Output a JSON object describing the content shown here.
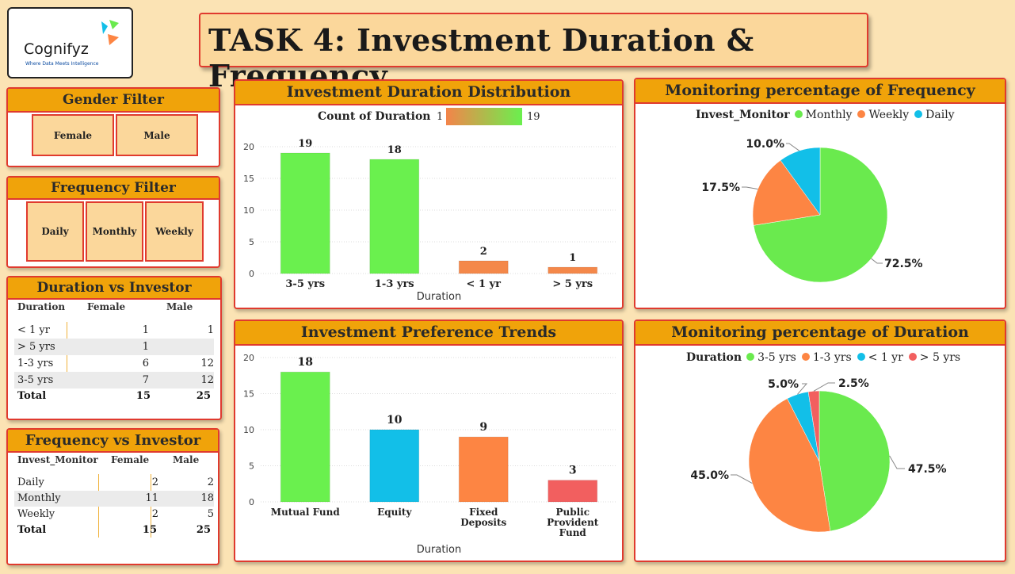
{
  "logo": {
    "name": "Cognifyz",
    "tagline": "Where Data Meets Intelligence"
  },
  "title": "TASK 4: Investment Duration & Frequency",
  "gender_filter": {
    "title": "Gender Filter",
    "options": [
      "Female",
      "Male"
    ]
  },
  "frequency_filter": {
    "title": "Frequency Filter",
    "options": [
      "Daily",
      "Monthly",
      "Weekly"
    ]
  },
  "duration_vs_investor": {
    "title": "Duration vs Investor",
    "columns": [
      "Duration",
      "Female",
      "Male"
    ],
    "rows": [
      {
        "label": "< 1 yr",
        "female": "1",
        "male": "1"
      },
      {
        "label": "> 5 yrs",
        "female": "1",
        "male": ""
      },
      {
        "label": "1-3 yrs",
        "female": "6",
        "male": "12"
      },
      {
        "label": "3-5 yrs",
        "female": "7",
        "male": "12"
      }
    ],
    "total": {
      "label": "Total",
      "female": "15",
      "male": "25"
    }
  },
  "frequency_vs_investor": {
    "title": "Frequency vs Investor",
    "columns": [
      "Invest_Monitor",
      "Female",
      "Male"
    ],
    "rows": [
      {
        "label": "Daily",
        "female": "2",
        "male": "2"
      },
      {
        "label": "Monthly",
        "female": "11",
        "male": "18"
      },
      {
        "label": "Weekly",
        "female": "2",
        "male": "5"
      }
    ],
    "total": {
      "label": "Total",
      "female": "15",
      "male": "25"
    }
  },
  "chart_data": [
    {
      "id": "duration_distribution",
      "type": "bar",
      "title": "Investment Duration Distribution",
      "legend_title": "Count of Duration",
      "gradient_min": "1",
      "gradient_max": "19",
      "gradient_colors": [
        "#f4844a",
        "#6af04e"
      ],
      "categories": [
        "3-5 yrs",
        "1-3 yrs",
        "< 1 yr",
        "> 5 yrs"
      ],
      "values": [
        19,
        18,
        2,
        1
      ],
      "bar_colors": [
        "#6af04e",
        "#6af04e",
        "#f4884a",
        "#f4884a"
      ],
      "xlabel": "Duration",
      "ylabel": "",
      "ylim": [
        0,
        20
      ],
      "yticks": [
        0,
        5,
        10,
        15,
        20
      ],
      "grid": true
    },
    {
      "id": "preference_trends",
      "type": "bar",
      "title": "Investment Preference Trends",
      "categories": [
        "Mutual Fund",
        "Equity",
        "Fixed Deposits",
        "Public Provident Fund"
      ],
      "category_lines": [
        [
          "Mutual Fund"
        ],
        [
          "Equity"
        ],
        [
          "Fixed",
          "Deposits"
        ],
        [
          "Public",
          "Provident",
          "Fund"
        ]
      ],
      "values": [
        18,
        10,
        9,
        3
      ],
      "bar_colors": [
        "#6af04e",
        "#12bfe8",
        "#fd8543",
        "#f25f5f"
      ],
      "xlabel": "Duration",
      "ylabel": "",
      "ylim": [
        0,
        20
      ],
      "yticks": [
        0,
        5,
        10,
        15,
        20
      ],
      "grid": true
    },
    {
      "id": "frequency_pie",
      "type": "pie",
      "title": "Monitoring percentage of Frequency",
      "legend_title": "Invest_Monitor",
      "legend_placement": "top",
      "categories": [
        "Monthly",
        "Weekly",
        "Daily"
      ],
      "values": [
        72.5,
        17.5,
        10.0
      ],
      "labels": [
        "72.5%",
        "17.5%",
        "10.0%"
      ],
      "colors": [
        "#6aea4e",
        "#fd8543",
        "#12bfe8"
      ]
    },
    {
      "id": "duration_pie",
      "type": "pie",
      "title": "Monitoring percentage of Duration",
      "legend_title": "Duration",
      "legend_placement": "top",
      "categories": [
        "3-5 yrs",
        "1-3 yrs",
        "< 1 yr",
        "> 5 yrs"
      ],
      "values": [
        47.5,
        45.0,
        5.0,
        2.5
      ],
      "labels": [
        "47.5%",
        "45.0%",
        "5.0%",
        "2.5%"
      ],
      "colors": [
        "#6aea4e",
        "#fd8543",
        "#12bfe8",
        "#f25f5f"
      ]
    }
  ]
}
